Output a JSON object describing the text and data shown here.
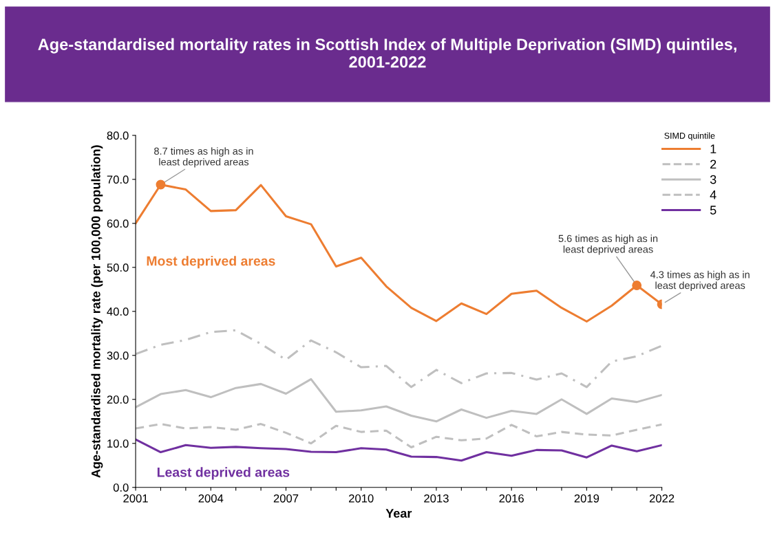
{
  "chart_data": {
    "type": "line",
    "title": "Age-standardised mortality rates in Scottish Index of Multiple Deprivation (SIMD) quintiles, 2001-2022",
    "xlabel": "Year",
    "ylabel": "Age-standardised mortality rate (per 100,000 population)",
    "legend_title": "SIMD quintile",
    "x": [
      2001,
      2002,
      2003,
      2004,
      2005,
      2006,
      2007,
      2008,
      2009,
      2010,
      2011,
      2012,
      2013,
      2014,
      2015,
      2016,
      2017,
      2018,
      2019,
      2020,
      2021,
      2022
    ],
    "series": [
      {
        "name": "1",
        "color": "#ed7d31",
        "line_style": "solid",
        "values": [
          60.0,
          68.8,
          67.7,
          62.8,
          63.0,
          68.7,
          61.6,
          59.8,
          50.2,
          52.2,
          45.7,
          40.8,
          37.8,
          41.8,
          39.4,
          44.0,
          44.7,
          40.8,
          37.7,
          41.3,
          45.9,
          41.6
        ]
      },
      {
        "name": "2",
        "color": "#bfbfbf",
        "line_style": "dashdot",
        "values": [
          30.3,
          32.4,
          33.5,
          35.3,
          35.7,
          32.6,
          29.0,
          33.4,
          30.7,
          27.3,
          27.6,
          22.8,
          26.7,
          23.7,
          25.9,
          26.0,
          24.5,
          25.9,
          22.8,
          28.6,
          29.8,
          32.2
        ]
      },
      {
        "name": "3",
        "color": "#bfbfbf",
        "line_style": "solid",
        "values": [
          18.2,
          21.2,
          22.1,
          20.5,
          22.6,
          23.5,
          21.3,
          24.6,
          17.2,
          17.5,
          18.4,
          16.3,
          15.0,
          17.7,
          15.8,
          17.4,
          16.7,
          20.0,
          16.7,
          20.2,
          19.4,
          21.0
        ]
      },
      {
        "name": "4",
        "color": "#bfbfbf",
        "line_style": "dashed",
        "values": [
          13.4,
          14.4,
          13.4,
          13.7,
          13.1,
          14.4,
          12.4,
          10.0,
          14.0,
          12.6,
          12.9,
          9.1,
          11.5,
          10.7,
          11.1,
          14.2,
          11.6,
          12.6,
          12.0,
          11.8,
          13.1,
          14.3
        ]
      },
      {
        "name": "5",
        "color": "#7030a0",
        "line_style": "solid",
        "values": [
          10.9,
          8.0,
          9.6,
          9.0,
          9.2,
          8.9,
          8.7,
          8.1,
          8.0,
          8.9,
          8.6,
          7.0,
          6.9,
          6.1,
          8.0,
          7.2,
          8.5,
          8.4,
          6.8,
          9.5,
          8.2,
          9.6
        ]
      }
    ],
    "annotations": [
      {
        "text": "8.7 times as high as in\nleast deprived areas",
        "x": 2002,
        "y": 68.8
      },
      {
        "text": "5.6 times as high as in\nleast deprived areas",
        "x": 2021,
        "y": 45.9
      },
      {
        "text": "4.3 times as high as in\nleast deprived areas",
        "x": 2022,
        "y": 41.6
      },
      "Most deprived areas",
      "Least deprived areas"
    ],
    "xlim": [
      2001,
      2022
    ],
    "xticks": [
      2001,
      {
        "value": 2002,
        "label": null
      },
      {
        "value": 2003,
        "label": null
      },
      2004,
      {
        "value": 2005,
        "label": null
      },
      {
        "value": 2006,
        "label": null
      },
      2007,
      {
        "value": 2008,
        "label": null
      },
      {
        "value": 2009,
        "label": null
      },
      2010,
      {
        "value": 2011,
        "label": null
      },
      {
        "value": 2012,
        "label": null
      },
      2013,
      {
        "value": 2014,
        "label": null
      },
      {
        "value": 2015,
        "label": null
      },
      2016,
      {
        "value": 2017,
        "label": null
      },
      {
        "value": 2018,
        "label": null
      },
      2019,
      {
        "value": 2020,
        "label": null
      },
      {
        "value": 2021,
        "label": null
      },
      2022
    ],
    "ylim": [
      0,
      80
    ],
    "yticks": [
      {
        "value": 0,
        "label": "0.0"
      },
      {
        "value": 10,
        "label": "10.0"
      },
      {
        "value": 20,
        "label": "20.0"
      },
      {
        "value": 30,
        "label": "30.0"
      },
      {
        "value": 40,
        "label": "40.0"
      },
      {
        "value": 50,
        "label": "50.0"
      },
      {
        "value": 60,
        "label": "60.0"
      },
      {
        "value": 70,
        "label": "70.0"
      },
      {
        "value": 80,
        "label": "80.0"
      }
    ],
    "grid": false,
    "legend": "top right",
    "marker": "none"
  }
}
